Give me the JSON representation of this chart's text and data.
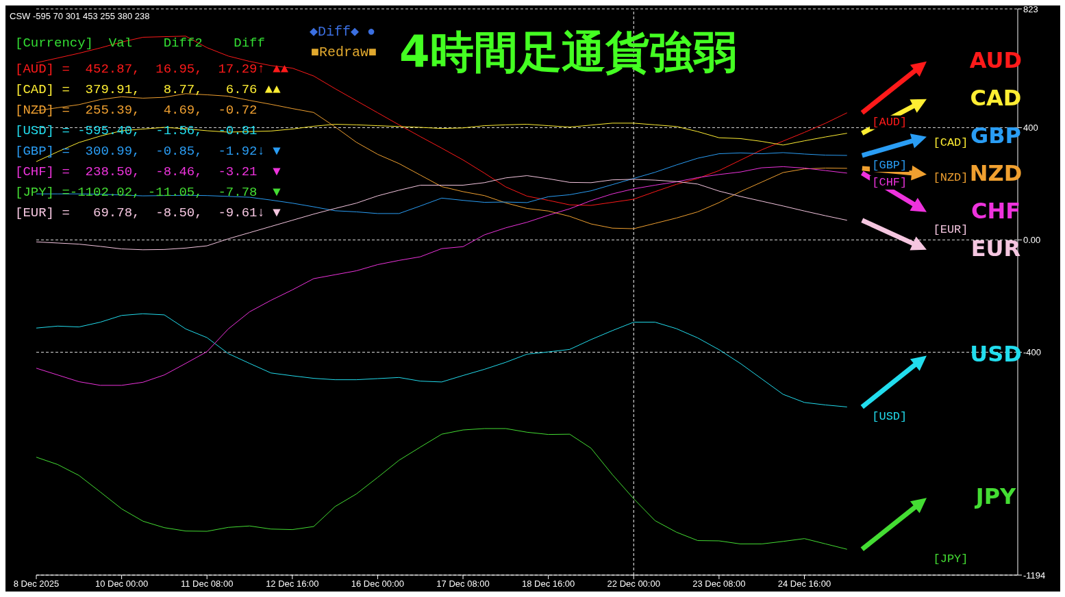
{
  "chart_data": {
    "type": "line",
    "title": "4時間足通貨強弱",
    "annotations": [
      "CSW -595 70 301 453 255 380 238",
      "◆Diff◆ ●",
      "■Redraw■",
      "[Currency]  Val    Diff2    Diff",
      "[AUD] =  452.87,  16.95,  17.29↑ ▲▲",
      "[CAD] =  379.91,   8.77,   6.76 ▲▲",
      "[NZD] =  255.39,   4.69,  -0.72",
      "[USD] = -595.40,  -1.56,  -0.81",
      "[GBP] =  300.99,  -0.85,  -1.92↓ ▼",
      "[CHF] =  238.50,  -8.46,  -3.21  ▼",
      "[JPY] =-1102.02, -11.05,  -7.78  ▼",
      "[EUR] =   69.78,  -8.50,  -9.61↓ ▼",
      "[AUD]",
      "[CAD]",
      "[NZD]",
      "[USD]",
      "[GBP]",
      "[CHF]",
      "[JPY]",
      "[EUR]"
    ],
    "categories": [
      "8 Dec 2025",
      null,
      null,
      null,
      "10 Dec 00:00",
      null,
      null,
      null,
      "11 Dec 08:00",
      null,
      null,
      null,
      "12 Dec 16:00",
      null,
      null,
      null,
      "16 Dec 00:00",
      null,
      null,
      null,
      "17 Dec 08:00",
      null,
      null,
      null,
      "18 Dec 16:00",
      null,
      null,
      null,
      "22 Dec 00:00",
      null,
      null,
      null,
      "23 Dec 08:00",
      null,
      null,
      null,
      "24 Dec 16:00",
      null,
      null,
      null,
      null,
      null,
      null,
      null,
      null,
      null,
      null
    ],
    "series": [
      {
        "name": "AUD",
        "color": "#ff1a1a",
        "values": [
          631,
          648,
          665,
          684,
          705,
          722,
          724,
          726,
          685,
          655,
          636,
          621,
          612,
          584,
          539,
          496,
          453,
          410,
          368,
          327,
          285,
          238,
          189,
          156,
          141,
          125,
          123,
          134,
          145,
          172,
          198,
          219,
          247,
          284,
          321,
          352,
          383,
          416,
          453,
          null,
          null,
          null,
          null,
          null,
          null,
          null,
          null
        ]
      },
      {
        "name": "CAD",
        "color": "#ffee33",
        "values": [
          279,
          314,
          347,
          370,
          389,
          395,
          401,
          396,
          389,
          384,
          386,
          388,
          395,
          405,
          412,
          410,
          407,
          404,
          401,
          397,
          399,
          407,
          410,
          412,
          407,
          402,
          409,
          416,
          416,
          410,
          404,
          386,
          364,
          361,
          351,
          338,
          353,
          367,
          380,
          null,
          null,
          null,
          null,
          null,
          null,
          null,
          null
        ]
      },
      {
        "name": "NZD",
        "color": "#f0a030",
        "values": [
          460,
          471,
          482,
          500,
          510,
          505,
          508,
          521,
          517,
          512,
          497,
          483,
          468,
          454,
          403,
          348,
          305,
          272,
          231,
          190,
          172,
          158,
          132,
          112,
          103,
          84,
          57,
          42,
          40,
          59,
          78,
          100,
          133,
          172,
          206,
          240,
          253,
          256,
          255,
          null,
          null,
          null,
          null,
          null,
          null,
          null,
          null
        ]
      },
      {
        "name": "USD",
        "color": "#22ddee",
        "values": [
          -314,
          -307,
          -310,
          -293,
          -269,
          -263,
          -267,
          -317,
          -348,
          -405,
          -440,
          -474,
          -484,
          -493,
          -498,
          -498,
          -494,
          -490,
          -503,
          -506,
          -483,
          -461,
          -436,
          -407,
          -399,
          -390,
          -355,
          -323,
          -293,
          -293,
          -316,
          -349,
          -391,
          -440,
          -495,
          -550,
          -579,
          -588,
          -595,
          null,
          null,
          null,
          null,
          null,
          null,
          null,
          null
        ]
      },
      {
        "name": "GBP",
        "color": "#2a9df4",
        "values": [
          164,
          164,
          164,
          163,
          160,
          157,
          158,
          159,
          158,
          155,
          152,
          142,
          131,
          118,
          104,
          100,
          94,
          94,
          121,
          149,
          141,
          134,
          135,
          133,
          154,
          161,
          175,
          197,
          219,
          241,
          267,
          291,
          307,
          310,
          307,
          311,
          306,
          302,
          301,
          null,
          null,
          null,
          null,
          null,
          null,
          null,
          null
        ]
      },
      {
        "name": "CHF",
        "color": "#ee33dd",
        "values": [
          -457,
          -481,
          -505,
          -518,
          -518,
          -507,
          -481,
          -440,
          -398,
          -317,
          -256,
          -215,
          -178,
          -138,
          -124,
          -110,
          -88,
          -73,
          -60,
          -31,
          -24,
          18,
          43,
          63,
          88,
          111,
          140,
          164,
          182,
          195,
          207,
          222,
          233,
          242,
          257,
          261,
          256,
          247,
          238,
          null,
          null,
          null,
          null,
          null,
          null,
          null,
          null
        ]
      },
      {
        "name": "JPY",
        "color": "#44dd33",
        "values": [
          -774,
          -800,
          -839,
          -898,
          -958,
          -1002,
          -1025,
          -1037,
          -1038,
          -1024,
          -1019,
          -1030,
          -1032,
          -1021,
          -950,
          -905,
          -846,
          -785,
          -738,
          -692,
          -677,
          -672,
          -672,
          -685,
          -693,
          -692,
          -742,
          -836,
          -922,
          -1000,
          -1041,
          -1071,
          -1072,
          -1083,
          -1083,
          -1074,
          -1064,
          -1083,
          -1102,
          null,
          null,
          null,
          null,
          null,
          null,
          null,
          null
        ]
      },
      {
        "name": "EUR",
        "color": "#f5c6e0",
        "values": [
          -7,
          -11,
          -15,
          -23,
          -32,
          -35,
          -34,
          -29,
          -21,
          4,
          26,
          48,
          70,
          92,
          112,
          131,
          157,
          177,
          195,
          195,
          195,
          204,
          221,
          229,
          218,
          205,
          204,
          214,
          216,
          213,
          208,
          199,
          174,
          155,
          138,
          121,
          103,
          86,
          70,
          null,
          null,
          null,
          null,
          null,
          null,
          null,
          null
        ]
      }
    ],
    "ylim": [
      -1194,
      823
    ],
    "yticks": [
      823,
      400,
      {
        "value": 0,
        "label": "0.00"
      },
      -400,
      -1194
    ],
    "ref_lines": [
      {
        "axis": "x",
        "value": "22 Dec 00:00",
        "line_style": "dashed"
      }
    ],
    "grid": "y",
    "legend": "right",
    "marker": "none",
    "line_style": "solid"
  }
}
